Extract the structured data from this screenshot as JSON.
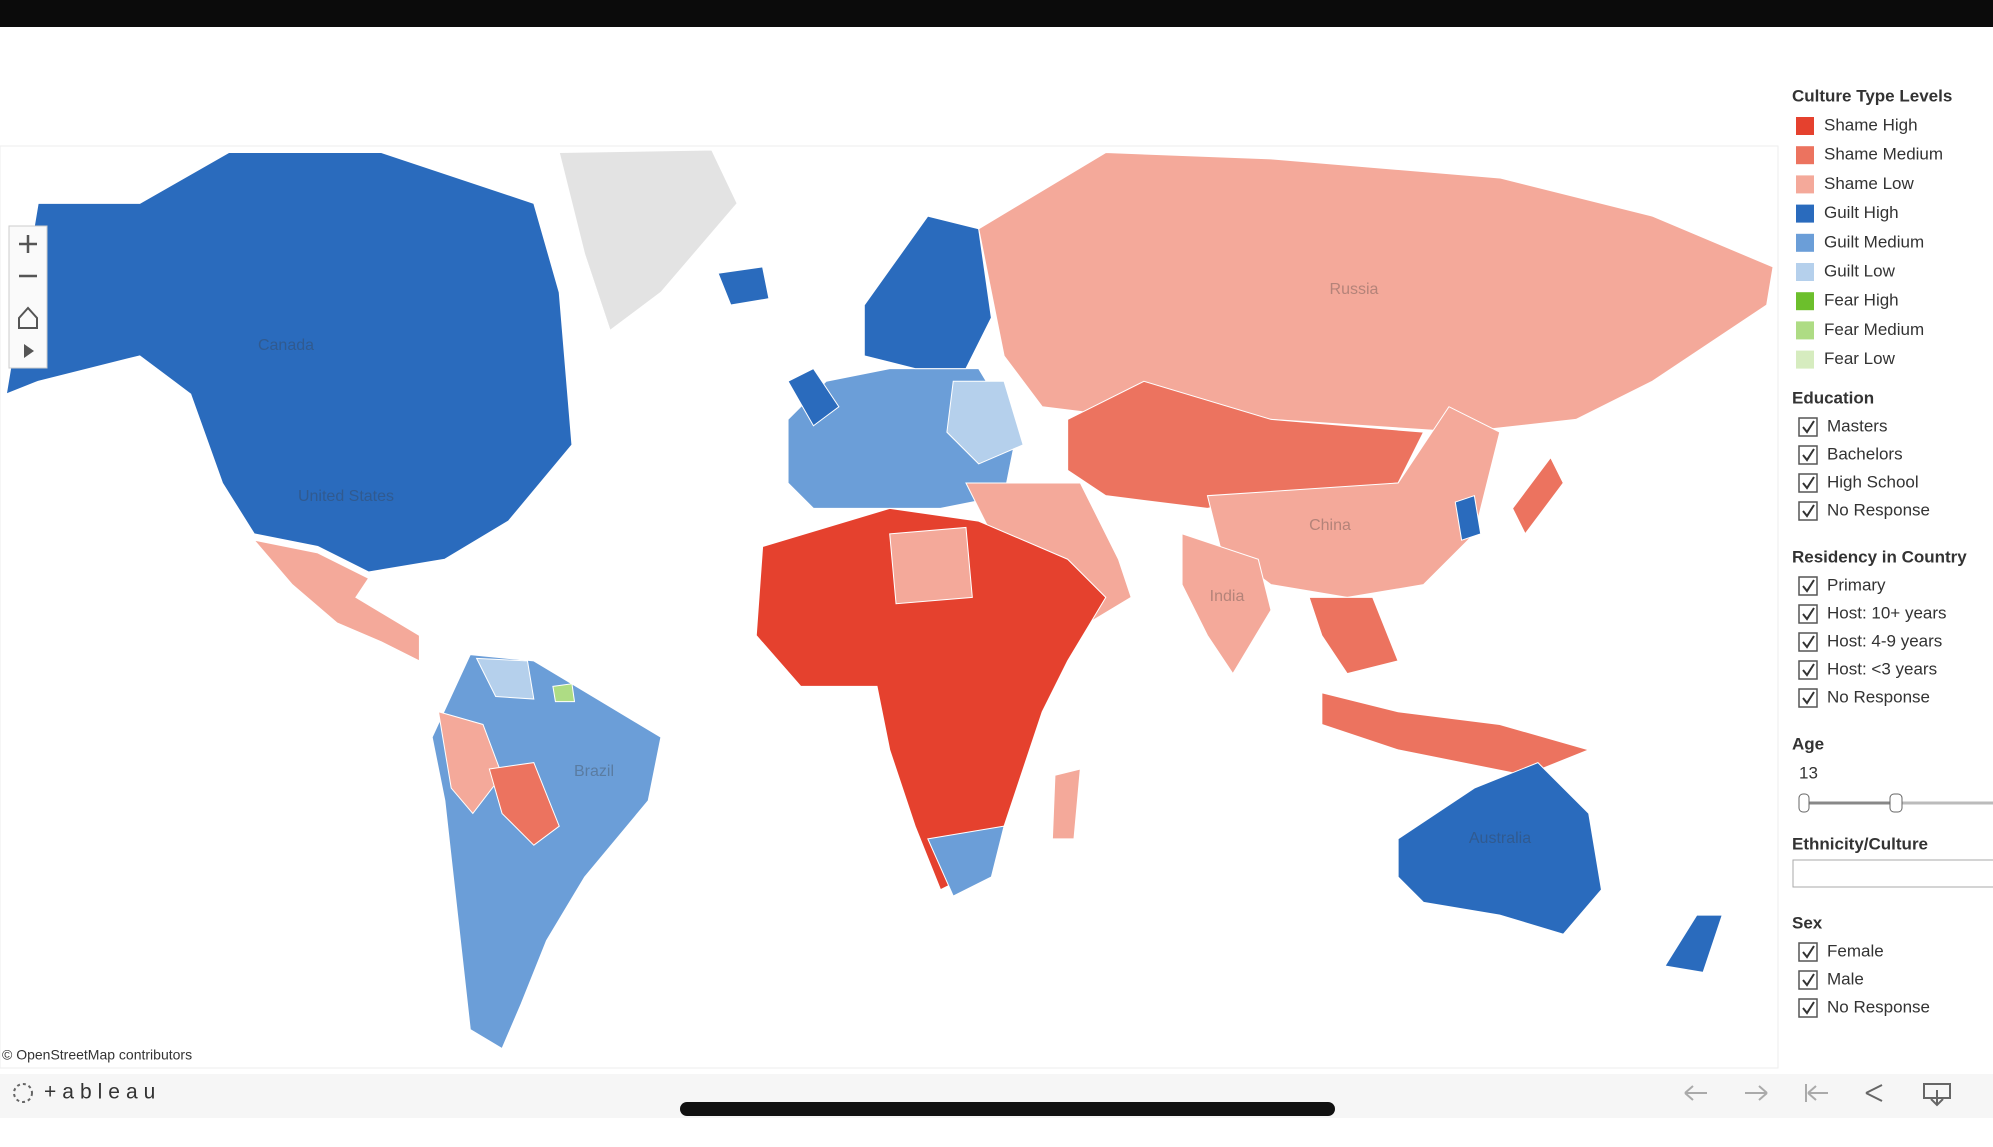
{
  "map": {
    "labels": [
      "Canada",
      "United States",
      "Brazil",
      "Russia",
      "China",
      "India",
      "Australia"
    ],
    "attribution": "© OpenStreetMap contributors"
  },
  "legend": {
    "title": "Culture Type Levels",
    "items": [
      {
        "name": "Shame High",
        "color": "#e5412e"
      },
      {
        "name": "Shame Medium",
        "color": "#ec735f"
      },
      {
        "name": "Shame Low",
        "color": "#f4a99a"
      },
      {
        "name": "Guilt High",
        "color": "#2a6bbd"
      },
      {
        "name": "Guilt Medium",
        "color": "#6b9ed8"
      },
      {
        "name": "Guilt Low",
        "color": "#b5d0ec"
      },
      {
        "name": "Fear High",
        "color": "#6cbf2c"
      },
      {
        "name": "Fear Medium",
        "color": "#aedc84"
      },
      {
        "name": "Fear Low",
        "color": "#d6ecbf"
      }
    ]
  },
  "filters": {
    "education": {
      "title": "Education",
      "options": [
        "Masters",
        "Bachelors",
        "High School",
        "No Response"
      ]
    },
    "residency": {
      "title": "Residency in Country",
      "options": [
        "Primary",
        "Host: 10+ years",
        "Host: 4-9 years",
        "Host: <3 years",
        "No Response"
      ]
    },
    "age": {
      "title": "Age",
      "value": 13
    },
    "ethnicity": {
      "title": "Ethnicity/Culture"
    },
    "sex": {
      "title": "Sex",
      "options": [
        "Female",
        "Male",
        "No Response"
      ]
    }
  },
  "footer": {
    "logo": "+ableau"
  }
}
